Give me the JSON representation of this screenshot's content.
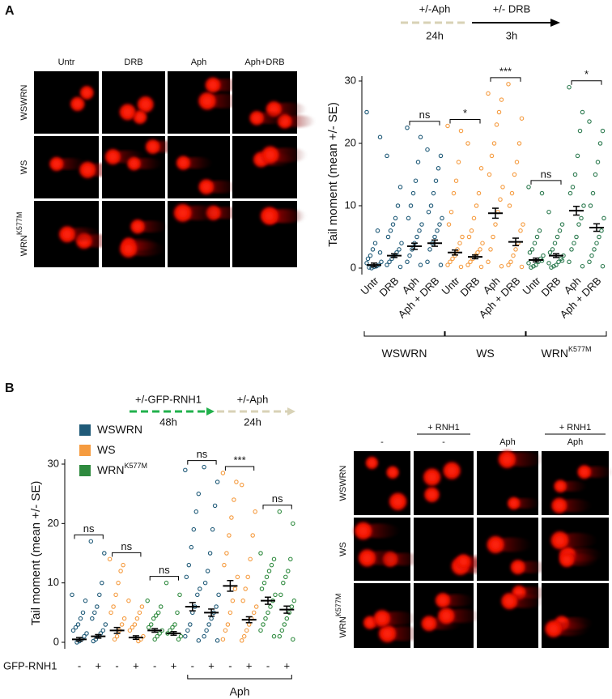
{
  "panel_labels": [
    "A",
    "B"
  ],
  "timeline_a": [
    {
      "label": "+/-Aph",
      "duration": "24h"
    },
    {
      "label": "+/- DRB",
      "duration": "3h"
    }
  ],
  "timeline_b": [
    {
      "label": "+/-GFP-RNH1",
      "duration": "48h"
    },
    {
      "label": "+/-Aph",
      "duration": "24h"
    }
  ],
  "images_a": {
    "columns": [
      {
        "label": "Untr"
      },
      {
        "label": "DRB"
      },
      {
        "label": "Aph"
      },
      {
        "label": "Aph+DRB"
      }
    ],
    "rows": [
      {
        "text": "WSWRN"
      },
      {
        "text": "WS"
      },
      {
        "text": "WRN",
        "sup": "K577M"
      }
    ]
  },
  "images_b": {
    "columns": [
      {
        "label": "-"
      },
      {
        "treatment": "+ RNH1",
        "label": "-"
      },
      {
        "label": "Aph"
      },
      {
        "treatment": "+ RNH1",
        "label": "Aph"
      }
    ],
    "rows": [
      {
        "text": "WSWRN"
      },
      {
        "text": "WS"
      },
      {
        "text": "WRN",
        "sup": "K577M"
      }
    ]
  },
  "chart_data": [
    {
      "type": "dotplot",
      "ylabel": "Tail moment (mean +/- SE)",
      "ylim": [
        0,
        30
      ],
      "yticks": [
        0,
        10,
        20,
        30
      ],
      "x_label_rotation": -45,
      "categories": [
        "Untr",
        "DRB",
        "Aph",
        "Aph + DRB",
        "Untr",
        "DRB",
        "Aph",
        "Aph + DRB",
        "Untr",
        "DRB",
        "Aph",
        "Aph + DRB"
      ],
      "series": [
        {
          "name": "WSWRN",
          "color": "#1f5a78",
          "values": [
            [
              25,
              21,
              6,
              4,
              3,
              2,
              1.5,
              1,
              0.5,
              0.3,
              0.2,
              0,
              0.1,
              0.8,
              2.5
            ],
            [
              18,
              13,
              10,
              8,
              7,
              6,
              5,
              4,
              3,
              2.5,
              2,
              1.5,
              1,
              0.5,
              0.2
            ],
            [
              22.5,
              21,
              17,
              14,
              12,
              10,
              8,
              7,
              6,
              5,
              4,
              3,
              2,
              1,
              0.5
            ],
            [
              19,
              18,
              16,
              14,
              12,
              10,
              9,
              8,
              7,
              6,
              5,
              4,
              3,
              1,
              0.5
            ],
            null,
            null,
            null,
            null,
            null,
            null,
            null,
            null
          ],
          "means": [
            0.5,
            2.0,
            3.5,
            4.0,
            null,
            null,
            null,
            null,
            null,
            null,
            null,
            null
          ],
          "se": [
            0.3,
            0.3,
            0.5,
            0.5,
            null,
            null,
            null,
            null,
            null,
            null,
            null,
            null
          ]
        },
        {
          "name": "WS",
          "color": "#f59b3f",
          "values": [
            null,
            null,
            null,
            null,
            [
              22.8,
              22,
              17,
              14,
              12,
              9,
              7,
              5,
              4,
              3,
              2,
              1.5,
              1,
              0.5,
              0.2
            ],
            [
              20,
              16,
              12,
              10,
              8,
              6,
              5,
              4,
              3,
              2.5,
              2,
              1.5,
              1,
              0.5,
              0.2
            ],
            [
              28,
              27,
              25,
              23,
              20,
              18,
              15,
              13,
              11,
              9,
              7,
              5,
              3,
              1,
              0.3
            ],
            [
              29.5,
              24,
              20,
              17,
              15,
              12,
              10,
              7,
              6,
              4,
              3,
              2,
              1,
              0.5,
              0.2
            ],
            null,
            null,
            null,
            null
          ],
          "means": [
            null,
            null,
            null,
            null,
            2.5,
            1.8,
            8.8,
            4.2,
            null,
            null,
            null,
            null
          ],
          "se": [
            null,
            null,
            null,
            null,
            0.4,
            0.3,
            0.8,
            0.6,
            null,
            null,
            null,
            null
          ]
        },
        {
          "name": "WRN",
          "name_sup": "K577M",
          "color": "#2c7a4f",
          "values": [
            null,
            null,
            null,
            null,
            null,
            null,
            null,
            null,
            [
              13,
              12,
              6,
              5,
              4,
              3,
              2.5,
              2,
              1.5,
              1,
              0.5,
              0.3,
              0.1,
              0.8,
              1.2
            ],
            [
              9,
              7,
              6,
              5,
              4,
              3,
              2.5,
              2,
              1.5,
              1,
              0.5,
              0.3,
              0.1,
              0.8,
              1.2
            ],
            [
              29,
              25,
              22,
              18,
              15,
              13,
              12,
              10,
              8,
              7,
              5,
              4,
              3,
              1,
              0.3
            ],
            [
              23.5,
              22,
              20,
              17,
              15,
              12,
              10,
              8,
              6,
              5,
              4,
              3,
              2,
              1,
              0.3
            ]
          ],
          "means": [
            null,
            null,
            null,
            null,
            null,
            null,
            null,
            null,
            1.3,
            2.0,
            9.2,
            6.5
          ],
          "se": [
            null,
            null,
            null,
            null,
            null,
            null,
            null,
            null,
            0.3,
            0.3,
            0.7,
            0.6
          ]
        }
      ],
      "comparisons": [
        {
          "between": [
            2,
            3
          ],
          "label": "ns"
        },
        {
          "between": [
            4,
            5
          ],
          "label": "*"
        },
        {
          "between": [
            6,
            7
          ],
          "label": "***"
        },
        {
          "between": [
            8,
            9
          ],
          "label": "ns"
        },
        {
          "between": [
            10,
            11
          ],
          "label": "*"
        }
      ]
    },
    {
      "type": "dotplot",
      "ylabel": "Tail moment (mean +/- SE)",
      "ylim": [
        0,
        30
      ],
      "yticks": [
        0,
        10,
        20,
        30
      ],
      "legend": "top-left",
      "xlabel": "GFP-RNH1",
      "categories": [
        "-",
        "+",
        "-",
        "+",
        "-",
        "+",
        "-",
        "+",
        "-",
        "+",
        "-",
        "+"
      ],
      "brackets": [
        {
          "from": 6,
          "to": 11,
          "label": "Aph"
        }
      ],
      "series": [
        {
          "name": "WSWRN",
          "color": "#1f5a78",
          "values": [
            [
              8,
              7,
              5,
              4,
              3,
              2.5,
              2,
              1.5,
              1,
              0.5,
              0.2,
              0
            ],
            [
              17,
              15,
              10,
              8,
              6,
              5,
              4,
              3,
              2,
              1.5,
              1,
              0.5,
              0.2
            ],
            null,
            null,
            null,
            null,
            [
              29,
              25,
              22,
              19,
              16,
              13,
              11,
              9,
              8,
              6,
              5,
              3,
              2,
              1,
              0.3
            ],
            [
              29.5,
              27,
              23,
              19,
              15,
              12,
              10,
              8,
              6,
              5,
              4,
              3,
              2,
              1,
              0.3
            ],
            null,
            null,
            null,
            null
          ],
          "means": [
            0.5,
            1.0,
            null,
            null,
            null,
            null,
            6.0,
            5.0,
            null,
            null,
            null,
            null
          ],
          "se": [
            0.3,
            0.3,
            null,
            null,
            null,
            null,
            0.7,
            0.6,
            null,
            null,
            null,
            null
          ]
        },
        {
          "name": "WS",
          "color": "#f59b3f",
          "values": [
            null,
            null,
            [
              14,
              13,
              12,
              10,
              8,
              6,
              5,
              4,
              3,
              2,
              1,
              0.5
            ],
            [
              7,
              6,
              5,
              4,
              3,
              2.5,
              2,
              1,
              0.5,
              0.2
            ],
            null,
            null,
            null,
            null,
            [
              28.5,
              27,
              24,
              21,
              18,
              15,
              13,
              11,
              9,
              7,
              5,
              3,
              2,
              0.5
            ],
            [
              26.5,
              22,
              18,
              14,
              11,
              9,
              7,
              6,
              5,
              4,
              3,
              2,
              1,
              0.3
            ],
            null,
            null
          ],
          "means": [
            null,
            null,
            2.0,
            0.8,
            null,
            null,
            null,
            null,
            9.5,
            3.8,
            null,
            null
          ],
          "se": [
            null,
            null,
            0.5,
            0.3,
            null,
            null,
            null,
            null,
            0.9,
            0.5,
            null,
            null
          ]
        },
        {
          "name": "WRN",
          "name_sup": "K577M",
          "color": "#2e8a3e",
          "values": [
            null,
            null,
            null,
            null,
            [
              7,
              6,
              5,
              4.5,
              4,
              3,
              2.5,
              2,
              1.5,
              1,
              0.5
            ],
            [
              10,
              8,
              5,
              3,
              2.5,
              2,
              1.5,
              1,
              0.5
            ],
            null,
            null,
            null,
            null,
            [
              15,
              14,
              13,
              12,
              11,
              10,
              9,
              8,
              7,
              6,
              5,
              4,
              3,
              2,
              1
            ],
            [
              22,
              20,
              14,
              12,
              11,
              10,
              8,
              7,
              6,
              5,
              4,
              3,
              2,
              1,
              0.5
            ]
          ],
          "means": [
            null,
            null,
            null,
            null,
            2.0,
            1.5,
            null,
            null,
            null,
            null,
            7.0,
            5.5
          ],
          "se": [
            null,
            null,
            null,
            null,
            0.3,
            0.3,
            null,
            null,
            null,
            null,
            0.6,
            0.6
          ]
        }
      ],
      "comparisons": [
        {
          "between": [
            0,
            1
          ],
          "label": "ns"
        },
        {
          "between": [
            2,
            3
          ],
          "label": "ns"
        },
        {
          "between": [
            4,
            5
          ],
          "label": "ns"
        },
        {
          "between": [
            6,
            7
          ],
          "label": "ns"
        },
        {
          "between": [
            8,
            9
          ],
          "label": "***"
        },
        {
          "between": [
            10,
            11
          ],
          "label": "ns"
        }
      ]
    }
  ]
}
